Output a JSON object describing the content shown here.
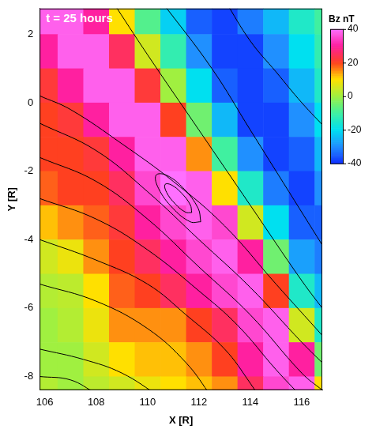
{
  "chart_data": {
    "type": "heatmap",
    "title": "t = 25 hours",
    "x_label": "X [R]",
    "y_label": "Y [R]",
    "xlim": [
      105.8,
      116.8
    ],
    "ylim": [
      -8.4,
      2.75
    ],
    "xticks": [
      106,
      108,
      110,
      112,
      114,
      116
    ],
    "yticks": [
      -8,
      -6,
      -4,
      -2,
      0,
      2
    ],
    "grid": false,
    "cells": {
      "x": [
        106,
        107,
        108,
        109,
        110,
        111,
        112,
        113,
        114,
        115,
        116,
        117
      ],
      "y": [
        2.5,
        1.5,
        0.5,
        -0.5,
        -1.5,
        -2.5,
        -3.5,
        -4.5,
        -5.5,
        -6.5,
        -7.5,
        -8.5
      ],
      "values": [
        [
          38,
          38,
          30,
          10,
          -8,
          -22,
          -35,
          -38,
          -32,
          -25,
          -15,
          -10
        ],
        [
          30,
          38,
          38,
          25,
          5,
          -12,
          -30,
          -38,
          -38,
          -30,
          -20,
          -12
        ],
        [
          22,
          30,
          38,
          38,
          22,
          0,
          -20,
          -35,
          -38,
          -35,
          -25,
          -15
        ],
        [
          20,
          22,
          30,
          38,
          38,
          20,
          -5,
          -25,
          -38,
          -38,
          -30,
          -20
        ],
        [
          20,
          20,
          22,
          30,
          38,
          38,
          15,
          -10,
          -30,
          -38,
          -35,
          -25
        ],
        [
          18,
          20,
          20,
          25,
          35,
          40,
          38,
          10,
          -15,
          -32,
          -38,
          -30
        ],
        [
          12,
          15,
          18,
          22,
          30,
          35,
          38,
          35,
          5,
          -20,
          -35,
          -35
        ],
        [
          5,
          8,
          15,
          20,
          25,
          30,
          35,
          38,
          30,
          -5,
          -28,
          -32
        ],
        [
          2,
          3,
          10,
          18,
          20,
          25,
          30,
          35,
          38,
          20,
          -15,
          -25
        ],
        [
          0,
          2,
          8,
          15,
          15,
          15,
          20,
          25,
          35,
          38,
          5,
          -15
        ],
        [
          0,
          0,
          5,
          10,
          12,
          12,
          15,
          20,
          30,
          38,
          30,
          -5
        ],
        [
          2,
          0,
          3,
          5,
          8,
          10,
          12,
          15,
          25,
          35,
          38,
          10
        ]
      ]
    },
    "colorbar": {
      "title": "Bz nT",
      "range": [
        -40,
        40
      ],
      "ticks": [
        40,
        20,
        0,
        -20,
        -40
      ]
    },
    "field_lines": [
      [
        [
          108.6,
          3
        ],
        [
          110,
          1.4
        ],
        [
          112,
          -0.8
        ],
        [
          114,
          -3
        ],
        [
          116,
          -5.2
        ],
        [
          117,
          -6.2
        ]
      ],
      [
        [
          110.5,
          3
        ],
        [
          112.5,
          1
        ],
        [
          114,
          -0.8
        ],
        [
          115.5,
          -2.6
        ],
        [
          117,
          -4.4
        ]
      ],
      [
        [
          113,
          3
        ],
        [
          114,
          1.8
        ],
        [
          115,
          0.9
        ],
        [
          116,
          0
        ],
        [
          117,
          -0.8
        ]
      ],
      [
        [
          105.8,
          0.2
        ],
        [
          107,
          -0.2
        ],
        [
          109,
          -1.2
        ],
        [
          111,
          -2.3
        ],
        [
          113,
          -3.6
        ],
        [
          115,
          -5.3
        ],
        [
          116.8,
          -6.8
        ]
      ],
      [
        [
          105.8,
          -0.6
        ],
        [
          108,
          -1.4
        ],
        [
          110,
          -2.6
        ],
        [
          112,
          -4
        ],
        [
          114,
          -5.4
        ],
        [
          116,
          -7
        ],
        [
          116.8,
          -7.6
        ]
      ],
      [
        [
          105.8,
          -1.6
        ],
        [
          108,
          -2.3
        ],
        [
          110,
          -3.4
        ],
        [
          112,
          -4.8
        ],
        [
          114,
          -6.2
        ],
        [
          116,
          -7.9
        ],
        [
          116.8,
          -8.4
        ]
      ],
      [
        [
          105.8,
          -2.8
        ],
        [
          108,
          -3.4
        ],
        [
          110,
          -4.3
        ],
        [
          112,
          -5.5
        ],
        [
          113.5,
          -6.5
        ],
        [
          115,
          -7.8
        ],
        [
          116,
          -8.6
        ]
      ],
      [
        [
          105.8,
          -4
        ],
        [
          108,
          -4.6
        ],
        [
          110,
          -5.3
        ],
        [
          111.5,
          -6.2
        ],
        [
          113,
          -7.2
        ],
        [
          114,
          -8.2
        ],
        [
          114.5,
          -8.8
        ]
      ],
      [
        [
          105.8,
          -5.3
        ],
        [
          108,
          -5.8
        ],
        [
          110,
          -6.6
        ],
        [
          111.5,
          -7.6
        ],
        [
          112.5,
          -8.6
        ]
      ],
      [
        [
          105.8,
          -7.2
        ],
        [
          107.5,
          -7.5
        ],
        [
          109,
          -7.9
        ],
        [
          110.5,
          -8.6
        ]
      ],
      [
        [
          105.8,
          -8
        ],
        [
          107,
          -8.1
        ],
        [
          108,
          -8.5
        ]
      ],
      [
        [
          112.07,
          -3.48
        ],
        [
          111.97,
          -3.09
        ],
        [
          111.42,
          -2.52
        ],
        [
          110.74,
          -2.12
        ],
        [
          110.33,
          -2.12
        ],
        [
          110.43,
          -2.51
        ],
        [
          110.98,
          -3.08
        ],
        [
          111.66,
          -3.48
        ],
        [
          112.07,
          -3.48
        ]
      ],
      [
        [
          111.72,
          -3.21
        ],
        [
          111.66,
          -2.98
        ],
        [
          111.32,
          -2.64
        ],
        [
          110.92,
          -2.4
        ],
        [
          110.68,
          -2.39
        ],
        [
          110.74,
          -2.62
        ],
        [
          111.08,
          -2.96
        ],
        [
          111.48,
          -3.2
        ],
        [
          111.72,
          -3.21
        ]
      ]
    ]
  }
}
